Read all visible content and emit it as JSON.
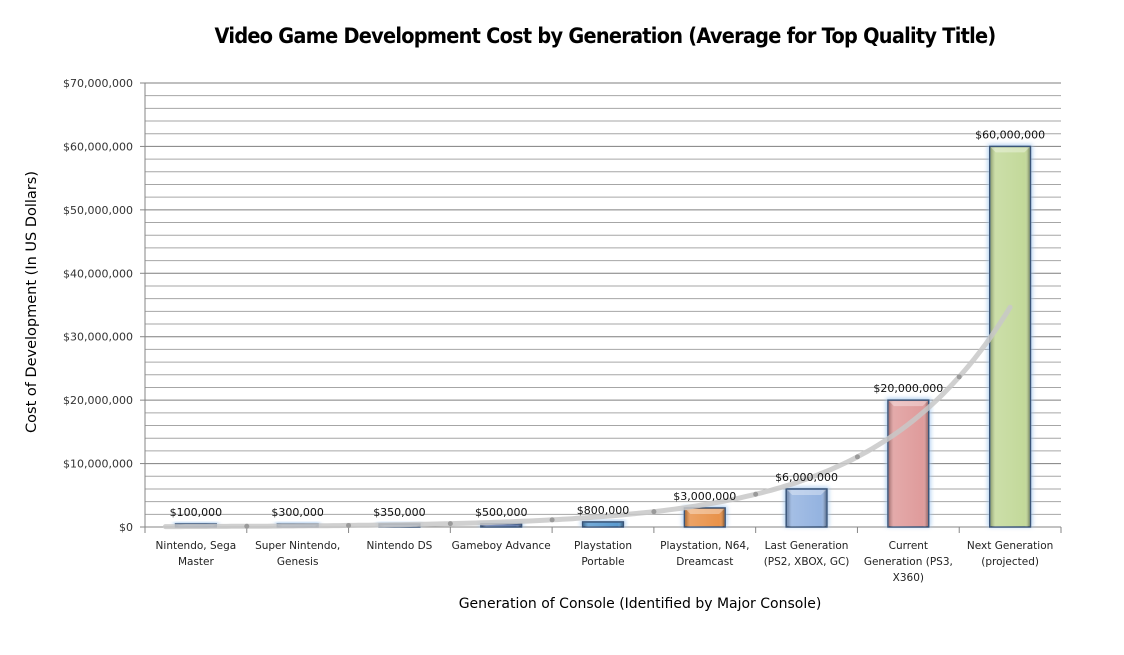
{
  "chart_data": {
    "type": "bar",
    "title": "Video Game Development Cost by Generation (Average for Top Quality Title)",
    "xlabel": "Generation of Console (Identified by Major Console)",
    "ylabel": "Cost of Development (In US Dollars)",
    "ylim": [
      0,
      70000000
    ],
    "y_major_step": 10000000,
    "y_minor_step": 2000000,
    "grid": true,
    "legend": "none",
    "y_ticks": [
      "$0",
      "$10,000,000",
      "$20,000,000",
      "$30,000,000",
      "$40,000,000",
      "$50,000,000",
      "$60,000,000",
      "$70,000,000"
    ],
    "categories": [
      [
        "Nintendo, Sega",
        "Master"
      ],
      [
        "Super Nintendo,",
        "Genesis"
      ],
      [
        "Nintendo DS"
      ],
      [
        "Gameboy Advance"
      ],
      [
        "Playstation",
        "Portable"
      ],
      [
        "Playstation, N64,",
        "Dreamcast"
      ],
      [
        "Last Generation",
        "(PS2, XBOX, GC)"
      ],
      [
        "Current",
        "Generation (PS3,",
        "X360)"
      ],
      [
        "Next Generation",
        "(projected)"
      ]
    ],
    "values": [
      100000,
      300000,
      350000,
      500000,
      800000,
      3000000,
      6000000,
      20000000,
      60000000
    ],
    "data_labels": [
      "$100,000",
      "$300,000",
      "$350,000",
      "$500,000",
      "$800,000",
      "$3,000,000",
      "$6,000,000",
      "$20,000,000",
      "$60,000,000"
    ],
    "bar_colors": [
      "#6f8fc0",
      "#6f8fc0",
      "#6f8fc0",
      "#6a80b2",
      "#5b9bd0",
      "#e8924a",
      "#94b3e0",
      "#df9b9b",
      "#c3d99a"
    ],
    "trendline": {
      "type": "exponential",
      "color": "#c8c8c8"
    }
  }
}
